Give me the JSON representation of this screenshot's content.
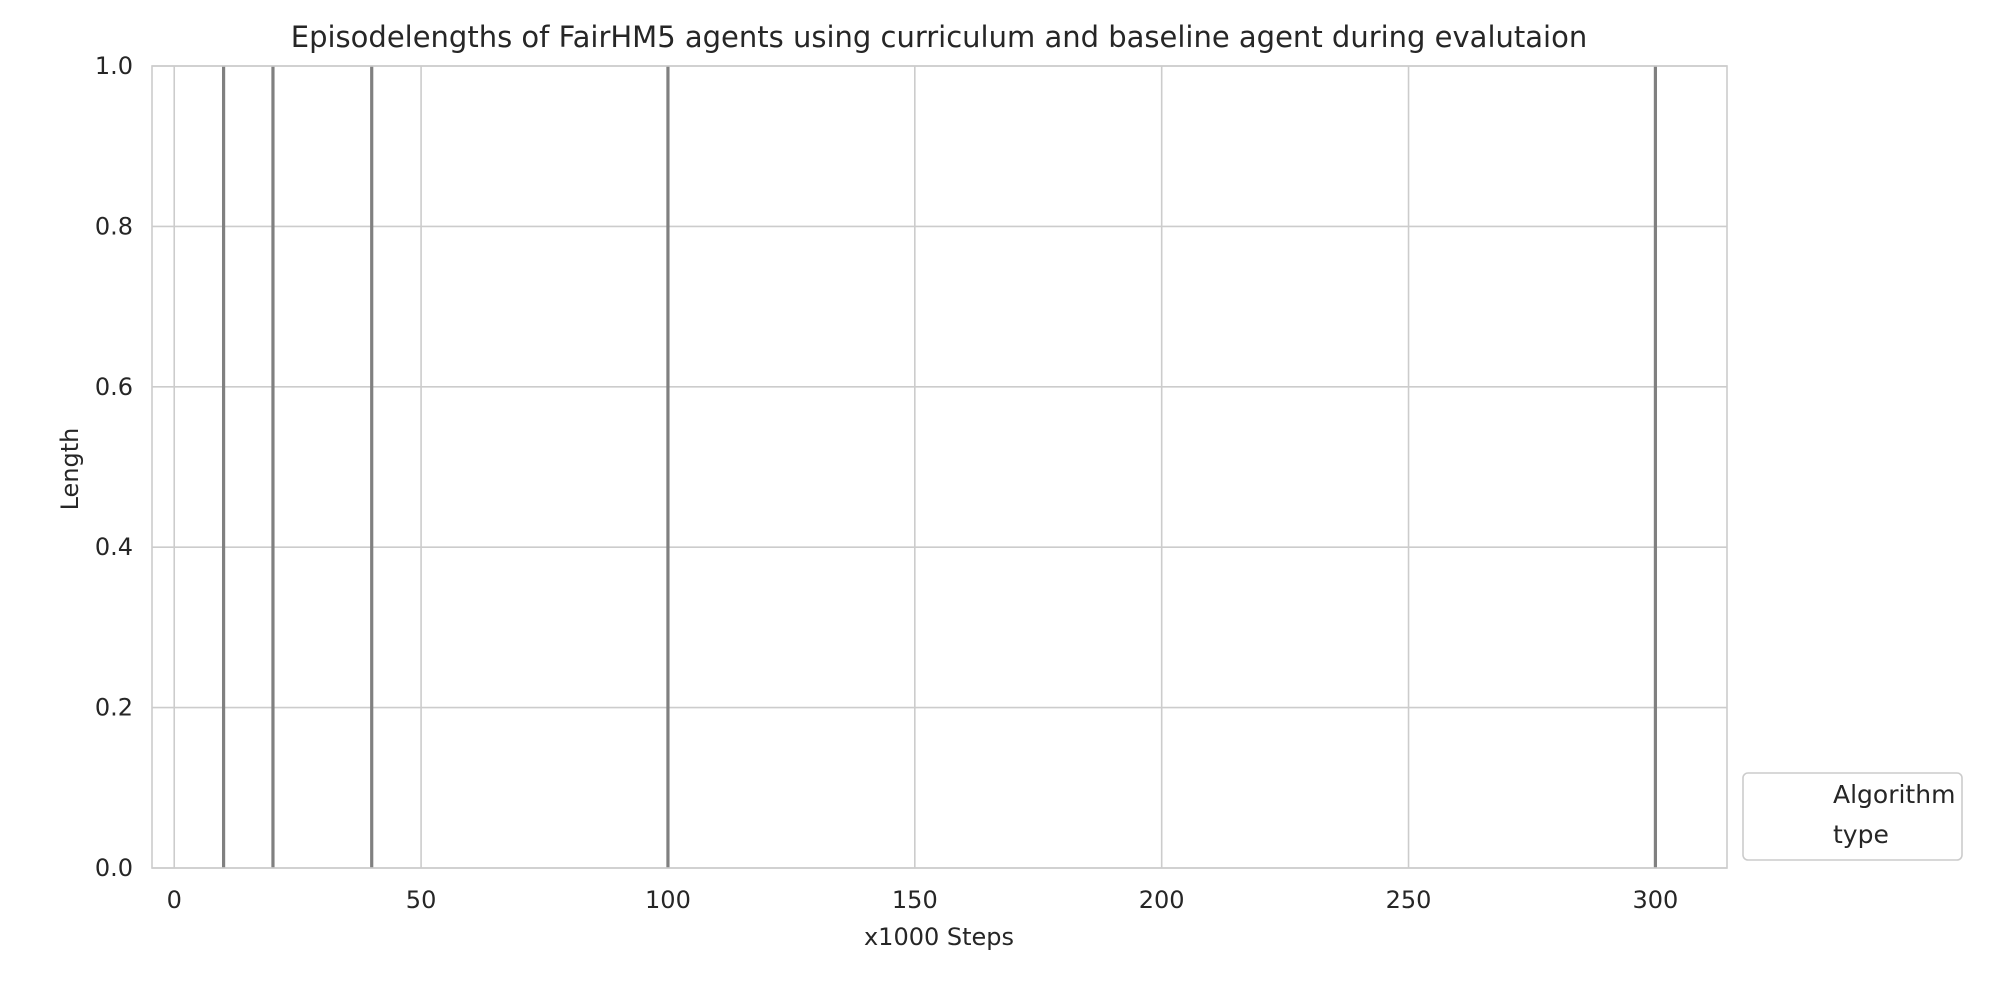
{
  "chart_data": {
    "type": "line",
    "title": "Episodelengths of FairHM5 agents using curriculum and baseline agent during evalutaion",
    "xlabel": "x1000 Steps",
    "ylabel": "Length",
    "xlim": [
      -4.5,
      314.5
    ],
    "ylim": [
      0,
      1
    ],
    "xticks": [
      0,
      50,
      100,
      150,
      200,
      250,
      300
    ],
    "yticks": [
      0.0,
      0.2,
      0.4,
      0.6,
      0.8,
      1.0
    ],
    "xtick_labels": [
      "0",
      "50",
      "100",
      "150",
      "200",
      "250",
      "300"
    ],
    "ytick_labels": [
      "0.0",
      "0.2",
      "0.4",
      "0.6",
      "0.8",
      "1.0"
    ],
    "grid": true,
    "vertical_lines": [
      {
        "x": 10,
        "color": "#808080"
      },
      {
        "x": 20,
        "color": "#808080"
      },
      {
        "x": 40,
        "color": "#808080"
      },
      {
        "x": 100,
        "color": "#808080"
      },
      {
        "x": 300,
        "color": "#808080"
      }
    ],
    "series": [],
    "legend": {
      "placement": "outside-lower-right",
      "entries": [
        "Algorithm",
        "type"
      ]
    },
    "colors": {
      "grid": "#cccccc",
      "axes_edge": "#cccccc",
      "vline": "#808080",
      "text": "#262626"
    }
  }
}
